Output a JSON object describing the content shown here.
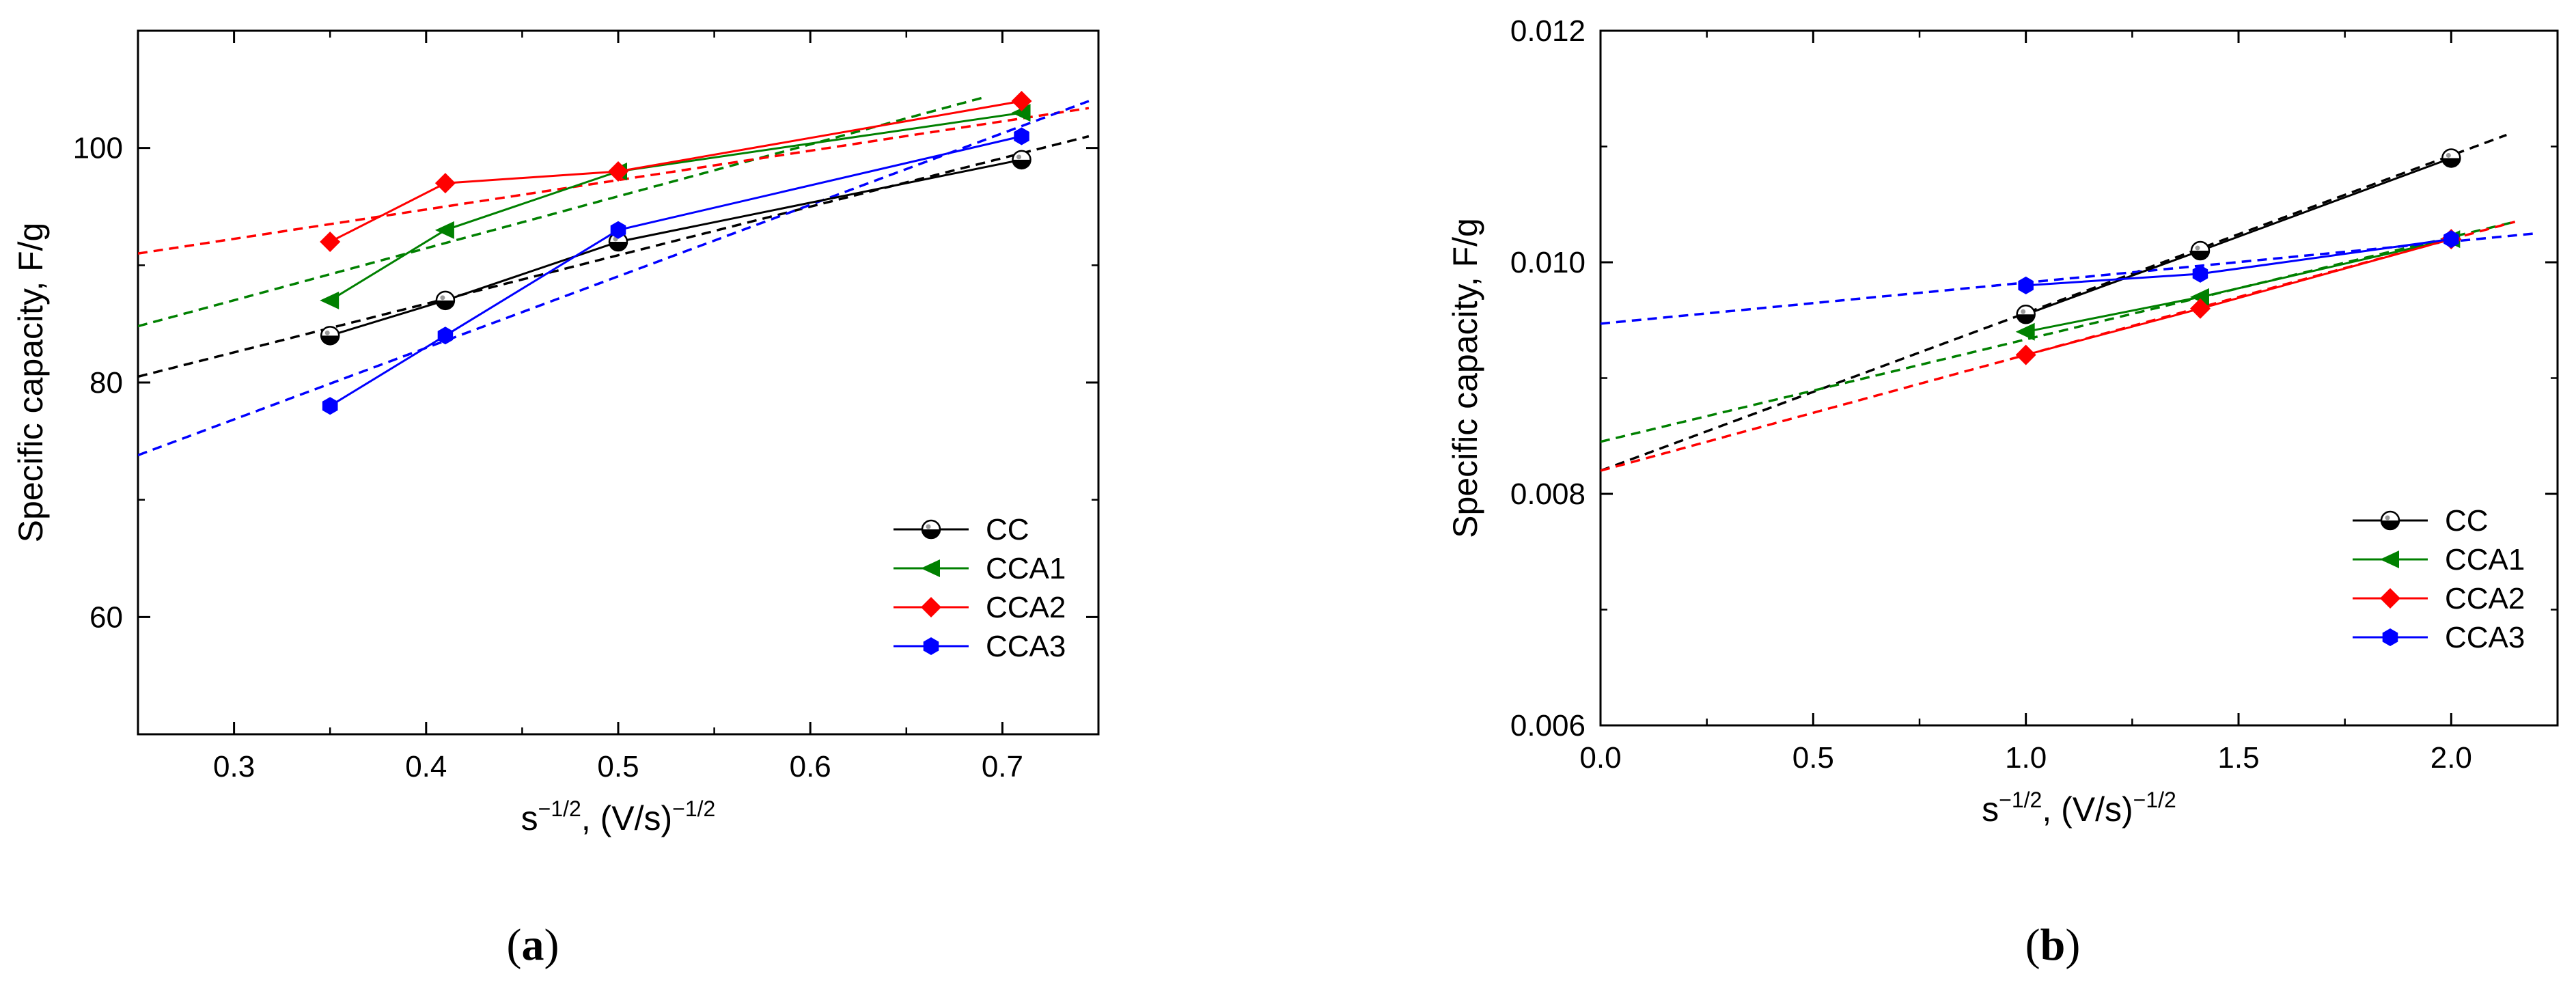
{
  "figure": {
    "panels": [
      {
        "label_open": "(",
        "label_letter": "a",
        "label_close": ")"
      },
      {
        "label_open": "(",
        "label_letter": "b",
        "label_close": ")"
      }
    ]
  },
  "chart_data": [
    {
      "type": "line",
      "panel": "a",
      "title": "",
      "xlabel_base": "s",
      "xlabel_sup": "−1/2",
      "xlabel_mid": ", (V/s)",
      "xlabel_sup2": "−1/2",
      "ylabel": "Specific capacity, F/g",
      "xlim": [
        0.25,
        0.75
      ],
      "ylim": [
        50,
        110
      ],
      "xticks": [
        0.3,
        0.4,
        0.5,
        0.6,
        0.7
      ],
      "xtick_labels": [
        "0.3",
        "0.4",
        "0.5",
        "0.6",
        "0.7"
      ],
      "yticks": [
        60,
        80,
        100
      ],
      "ytick_labels": [
        "60",
        "80",
        "100"
      ],
      "grid": false,
      "legend_position": "bottom-right",
      "series": [
        {
          "name": "CC",
          "color": "#000000",
          "marker": "half-circle",
          "x": [
            0.35,
            0.41,
            0.5,
            0.71
          ],
          "y": [
            84,
            87,
            92,
            99
          ],
          "fit_x": [
            0.25,
            0.745
          ],
          "fit_y": [
            80.5,
            101
          ]
        },
        {
          "name": "CCA1",
          "color": "#008000",
          "marker": "triangle-left",
          "x": [
            0.35,
            0.41,
            0.5,
            0.71
          ],
          "y": [
            87,
            93,
            98,
            103
          ],
          "fit_x": [
            0.25,
            0.69
          ],
          "fit_y": [
            84.8,
            104.3
          ]
        },
        {
          "name": "CCA2",
          "color": "#ff0000",
          "marker": "diamond",
          "x": [
            0.35,
            0.41,
            0.5,
            0.71
          ],
          "y": [
            92,
            97,
            98,
            104
          ],
          "fit_x": [
            0.25,
            0.745
          ],
          "fit_y": [
            91,
            103.4
          ]
        },
        {
          "name": "CCA3",
          "color": "#0000ff",
          "marker": "hexagon",
          "x": [
            0.35,
            0.41,
            0.5,
            0.71
          ],
          "y": [
            78,
            84,
            93,
            101
          ],
          "fit_x": [
            0.25,
            0.745
          ],
          "fit_y": [
            73.8,
            104
          ]
        }
      ]
    },
    {
      "type": "line",
      "panel": "b",
      "title": "",
      "xlabel_base": "s",
      "xlabel_sup": "−1/2",
      "xlabel_mid": ", (V/s)",
      "xlabel_sup2": "−1/2",
      "ylabel": "Specific capacity, F/g",
      "xlim": [
        0.0,
        2.25
      ],
      "ylim": [
        0.006,
        0.012
      ],
      "xticks": [
        0.0,
        0.5,
        1.0,
        1.5,
        2.0
      ],
      "xtick_labels": [
        "0.0",
        "0.5",
        "1.0",
        "1.5",
        "2.0"
      ],
      "yticks": [
        0.006,
        0.008,
        0.01,
        0.012
      ],
      "ytick_labels": [
        "0.006",
        "0.008",
        "0.010",
        "0.012"
      ],
      "grid": false,
      "legend_position": "bottom-right",
      "series": [
        {
          "name": "CC",
          "color": "#000000",
          "marker": "half-circle",
          "x": [
            1.0,
            1.41,
            2.0
          ],
          "y": [
            0.00955,
            0.0101,
            0.0109
          ],
          "fit_x": [
            0.0,
            2.13
          ],
          "fit_y": [
            0.0082,
            0.0111
          ]
        },
        {
          "name": "CCA1",
          "color": "#008000",
          "marker": "triangle-left",
          "x": [
            1.0,
            1.41,
            2.0
          ],
          "y": [
            0.0094,
            0.0097,
            0.0102
          ],
          "fit_x": [
            0.0,
            2.15
          ],
          "fit_y": [
            0.00845,
            0.01035
          ]
        },
        {
          "name": "CCA2",
          "color": "#ff0000",
          "marker": "diamond",
          "x": [
            1.0,
            1.41,
            2.0
          ],
          "y": [
            0.0092,
            0.0096,
            0.0102
          ],
          "fit_x": [
            0.0,
            2.15
          ],
          "fit_y": [
            0.0082,
            0.01035
          ]
        },
        {
          "name": "CCA3",
          "color": "#0000ff",
          "marker": "hexagon",
          "x": [
            1.0,
            1.41,
            2.0
          ],
          "y": [
            0.0098,
            0.0099,
            0.0102
          ],
          "fit_x": [
            0.0,
            2.2
          ],
          "fit_y": [
            0.00947,
            0.01025
          ]
        }
      ]
    }
  ]
}
